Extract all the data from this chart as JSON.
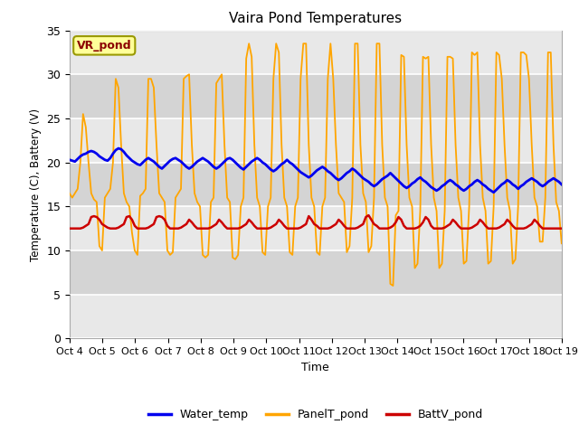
{
  "title": "Vaira Pond Temperatures",
  "ylabel": "Temperature (C), Battery (V)",
  "xlabel": "Time",
  "xlim": [
    0,
    15
  ],
  "ylim": [
    0,
    35
  ],
  "yticks": [
    0,
    5,
    10,
    15,
    20,
    25,
    30,
    35
  ],
  "xtick_labels": [
    "Oct 4",
    "Oct 5",
    "Oct 6",
    "Oct 7",
    "Oct 8",
    "Oct 9",
    "Oct 10",
    "Oct 11",
    "Oct 12",
    "Oct 13",
    "Oct 14",
    "Oct 15",
    "Oct 16",
    "Oct 17",
    "Oct 18",
    "Oct 19"
  ],
  "bg_light": "#dcdcdc",
  "bg_dark": "#c8c8c8",
  "fig_bg_color": "#ffffff",
  "water_color": "#0000ee",
  "panel_color": "#ffa500",
  "batt_color": "#cc0000",
  "legend_label_box": "VR_pond",
  "legend_box_facecolor": "#ffff99",
  "legend_box_edgecolor": "#999900",
  "grid_color": "#f0f0f0",
  "water_temp": [
    20.3,
    20.2,
    20.1,
    20.4,
    20.7,
    20.9,
    21.0,
    21.2,
    21.3,
    21.2,
    21.0,
    20.7,
    20.5,
    20.3,
    20.2,
    20.5,
    21.0,
    21.4,
    21.6,
    21.5,
    21.2,
    20.8,
    20.5,
    20.2,
    20.0,
    19.8,
    19.7,
    20.0,
    20.3,
    20.5,
    20.3,
    20.1,
    19.8,
    19.5,
    19.3,
    19.6,
    19.9,
    20.2,
    20.4,
    20.5,
    20.3,
    20.1,
    19.8,
    19.5,
    19.3,
    19.5,
    19.8,
    20.1,
    20.3,
    20.5,
    20.3,
    20.1,
    19.8,
    19.5,
    19.3,
    19.5,
    19.8,
    20.1,
    20.4,
    20.5,
    20.3,
    20.0,
    19.7,
    19.4,
    19.2,
    19.5,
    19.8,
    20.1,
    20.3,
    20.5,
    20.3,
    20.0,
    19.8,
    19.5,
    19.2,
    19.0,
    19.2,
    19.5,
    19.8,
    20.0,
    20.3,
    20.0,
    19.8,
    19.5,
    19.2,
    18.9,
    18.7,
    18.5,
    18.3,
    18.5,
    18.8,
    19.1,
    19.3,
    19.5,
    19.3,
    19.0,
    18.8,
    18.5,
    18.2,
    18.0,
    18.2,
    18.5,
    18.8,
    19.0,
    19.3,
    19.1,
    18.8,
    18.5,
    18.2,
    18.0,
    17.8,
    17.5,
    17.3,
    17.5,
    17.8,
    18.1,
    18.3,
    18.5,
    18.8,
    18.5,
    18.2,
    17.9,
    17.6,
    17.3,
    17.1,
    17.3,
    17.6,
    17.8,
    18.1,
    18.3,
    18.0,
    17.8,
    17.5,
    17.2,
    17.0,
    16.8,
    17.0,
    17.3,
    17.5,
    17.8,
    18.0,
    17.8,
    17.5,
    17.3,
    17.0,
    16.8,
    17.0,
    17.3,
    17.5,
    17.8,
    18.0,
    17.8,
    17.5,
    17.3,
    17.0,
    16.8,
    16.6,
    16.9,
    17.2,
    17.5,
    17.7,
    18.0,
    17.8,
    17.5,
    17.3,
    17.0,
    17.3,
    17.5,
    17.8,
    18.0,
    18.2,
    18.0,
    17.8,
    17.5,
    17.3,
    17.5,
    17.8,
    18.0,
    18.2,
    18.0,
    17.8,
    17.5
  ],
  "panel_temp": [
    16.5,
    16.0,
    16.5,
    17.0,
    20.0,
    25.5,
    24.0,
    20.0,
    16.5,
    15.8,
    15.5,
    10.5,
    10.0,
    16.0,
    16.5,
    17.0,
    20.0,
    29.5,
    28.5,
    22.0,
    16.5,
    15.5,
    15.0,
    12.0,
    10.0,
    9.5,
    16.2,
    16.5,
    17.0,
    29.5,
    29.5,
    28.5,
    22.0,
    16.5,
    16.0,
    15.5,
    10.0,
    9.5,
    9.8,
    16.0,
    16.5,
    17.0,
    29.5,
    29.8,
    30.0,
    22.0,
    16.5,
    15.5,
    15.0,
    9.5,
    9.2,
    9.5,
    15.5,
    16.0,
    29.0,
    29.5,
    30.0,
    22.0,
    16.0,
    15.5,
    9.2,
    9.0,
    9.5,
    15.0,
    16.0,
    31.8,
    33.5,
    32.0,
    22.0,
    16.0,
    15.0,
    9.8,
    9.5,
    15.0,
    16.0,
    29.5,
    33.5,
    32.5,
    22.0,
    16.0,
    15.0,
    9.8,
    9.5,
    15.0,
    16.0,
    29.5,
    33.5,
    33.5,
    22.0,
    16.0,
    15.0,
    9.8,
    9.5,
    15.0,
    16.0,
    29.5,
    33.5,
    29.5,
    22.0,
    16.5,
    16.0,
    15.5,
    9.8,
    10.5,
    16.0,
    33.5,
    33.5,
    22.0,
    16.5,
    15.5,
    9.8,
    10.5,
    16.0,
    33.5,
    33.5,
    22.0,
    16.0,
    15.0,
    6.2,
    6.0,
    14.0,
    14.5,
    32.2,
    32.0,
    22.0,
    16.0,
    15.0,
    8.0,
    8.5,
    14.5,
    32.0,
    31.8,
    32.0,
    22.0,
    16.0,
    14.5,
    8.0,
    8.5,
    14.5,
    32.0,
    32.0,
    31.8,
    22.0,
    16.0,
    14.5,
    8.5,
    8.8,
    15.0,
    32.5,
    32.2,
    32.5,
    22.0,
    16.0,
    14.5,
    8.5,
    8.8,
    15.0,
    32.5,
    32.2,
    29.5,
    22.0,
    16.0,
    14.5,
    8.5,
    9.0,
    15.0,
    32.5,
    32.5,
    32.2,
    29.5,
    22.0,
    16.0,
    15.0,
    11.0,
    11.0,
    16.0,
    32.5,
    32.5,
    22.0,
    15.5,
    14.5,
    10.8
  ],
  "batt_volt": [
    12.5,
    12.5,
    12.5,
    12.5,
    12.5,
    12.6,
    12.8,
    13.0,
    13.8,
    13.9,
    13.8,
    13.5,
    13.0,
    12.8,
    12.6,
    12.5,
    12.5,
    12.5,
    12.6,
    12.8,
    13.0,
    13.8,
    13.9,
    13.5,
    12.8,
    12.5,
    12.5,
    12.5,
    12.5,
    12.6,
    12.8,
    13.0,
    13.8,
    13.9,
    13.8,
    13.5,
    12.8,
    12.5,
    12.5,
    12.5,
    12.5,
    12.6,
    12.8,
    13.0,
    13.5,
    13.2,
    12.8,
    12.5,
    12.5,
    12.5,
    12.5,
    12.5,
    12.6,
    12.8,
    13.0,
    13.5,
    13.2,
    12.8,
    12.5,
    12.5,
    12.5,
    12.5,
    12.5,
    12.6,
    12.8,
    13.0,
    13.5,
    13.2,
    12.8,
    12.5,
    12.5,
    12.5,
    12.5,
    12.5,
    12.6,
    12.8,
    13.0,
    13.5,
    13.2,
    12.8,
    12.5,
    12.5,
    12.5,
    12.5,
    12.5,
    12.6,
    12.8,
    13.0,
    13.9,
    13.5,
    13.0,
    12.8,
    12.5,
    12.5,
    12.5,
    12.5,
    12.6,
    12.8,
    13.0,
    13.5,
    13.2,
    12.8,
    12.5,
    12.5,
    12.5,
    12.5,
    12.6,
    12.8,
    13.0,
    13.8,
    14.0,
    13.5,
    13.0,
    12.8,
    12.5,
    12.5,
    12.5,
    12.5,
    12.6,
    12.8,
    13.2,
    13.8,
    13.5,
    12.8,
    12.5,
    12.5,
    12.5,
    12.5,
    12.6,
    12.8,
    13.2,
    13.8,
    13.5,
    12.8,
    12.5,
    12.5,
    12.5,
    12.5,
    12.6,
    12.8,
    13.0,
    13.5,
    13.2,
    12.8,
    12.5,
    12.5,
    12.5,
    12.5,
    12.6,
    12.8,
    13.0,
    13.5,
    13.2,
    12.8,
    12.5,
    12.5,
    12.5,
    12.5,
    12.6,
    12.8,
    13.0,
    13.5,
    13.2,
    12.8,
    12.5,
    12.5,
    12.5,
    12.5,
    12.6,
    12.8,
    13.0,
    13.5,
    13.2,
    12.8,
    12.5,
    12.5,
    12.5,
    12.5,
    12.5,
    12.5,
    12.5,
    12.5
  ]
}
